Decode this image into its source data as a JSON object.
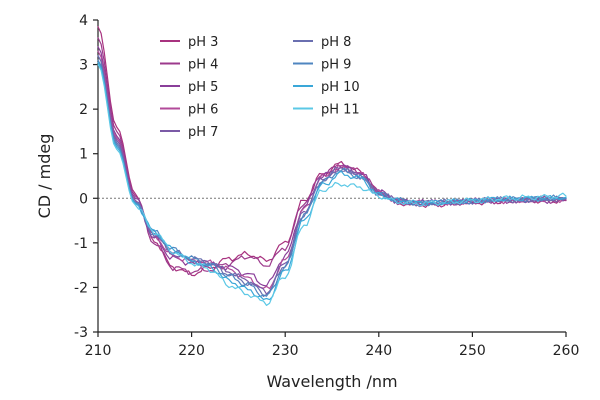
{
  "chart_data": {
    "type": "line",
    "title": "",
    "xlabel": "Wavelength /nm",
    "ylabel": "CD / mdeg",
    "xlim": [
      210,
      260
    ],
    "ylim": [
      -3,
      4
    ],
    "x_ticks": [
      210,
      220,
      230,
      240,
      250,
      260
    ],
    "y_ticks": [
      -3,
      -2,
      -1,
      0,
      1,
      2,
      3,
      4
    ],
    "x_tick_labels": [
      "210",
      "220",
      "230",
      "240",
      "250",
      "260"
    ],
    "y_tick_labels": [
      "-3",
      "-2",
      "-1",
      "0",
      "1",
      "2",
      "3",
      "4"
    ],
    "zero_reference_line": true,
    "legend_position": "top-left-inside",
    "x": [
      210,
      212,
      214,
      216,
      218,
      220,
      222,
      224,
      226,
      228,
      230,
      232,
      234,
      236,
      238,
      240,
      242,
      244,
      246,
      248,
      250,
      252,
      254,
      256,
      258,
      260
    ],
    "series": [
      {
        "name": "pH 3",
        "color": "#a8327f",
        "values": [
          3.85,
          1.6,
          0.1,
          -0.95,
          -1.55,
          -1.7,
          -1.55,
          -1.35,
          -1.25,
          -1.4,
          -1.0,
          -0.05,
          0.55,
          0.78,
          0.6,
          0.15,
          -0.1,
          -0.15,
          -0.15,
          -0.1,
          -0.1,
          -0.08,
          -0.05,
          -0.05,
          -0.05,
          -0.05
        ]
      },
      {
        "name": "pH 4",
        "color": "#9c3a8c",
        "values": [
          3.6,
          1.5,
          0.05,
          -1.0,
          -1.55,
          -1.65,
          -1.6,
          -1.45,
          -1.3,
          -1.5,
          -1.1,
          -0.1,
          0.55,
          0.75,
          0.58,
          0.15,
          -0.08,
          -0.12,
          -0.12,
          -0.1,
          -0.08,
          -0.06,
          -0.05,
          -0.05,
          -0.05,
          -0.05
        ]
      },
      {
        "name": "pH 5",
        "color": "#8a3f9a",
        "values": [
          3.4,
          1.4,
          0.0,
          -0.9,
          -1.35,
          -1.45,
          -1.5,
          -1.55,
          -1.7,
          -1.95,
          -1.3,
          -0.2,
          0.5,
          0.72,
          0.56,
          0.15,
          -0.05,
          -0.1,
          -0.1,
          -0.08,
          -0.08,
          -0.05,
          -0.05,
          -0.05,
          -0.05,
          0.0
        ]
      },
      {
        "name": "pH 6",
        "color": "#b24a9a",
        "values": [
          3.3,
          1.35,
          -0.05,
          -0.85,
          -1.3,
          -1.4,
          -1.45,
          -1.6,
          -1.8,
          -2.05,
          -1.4,
          -0.25,
          0.48,
          0.7,
          0.55,
          0.12,
          -0.05,
          -0.1,
          -0.1,
          -0.08,
          -0.06,
          -0.05,
          -0.05,
          -0.03,
          -0.03,
          -0.02
        ]
      },
      {
        "name": "pH 7",
        "color": "#7b5aa6",
        "values": [
          3.2,
          1.3,
          -0.05,
          -0.8,
          -1.25,
          -1.4,
          -1.45,
          -1.65,
          -1.85,
          -2.1,
          -1.45,
          -0.3,
          0.45,
          0.68,
          0.52,
          0.12,
          -0.05,
          -0.1,
          -0.1,
          -0.08,
          -0.06,
          -0.04,
          -0.03,
          -0.03,
          -0.02,
          -0.02
        ]
      },
      {
        "name": "pH 8",
        "color": "#6a6fb0",
        "values": [
          3.2,
          1.25,
          -0.1,
          -0.8,
          -1.2,
          -1.35,
          -1.45,
          -1.7,
          -1.9,
          -2.15,
          -1.5,
          -0.35,
          0.4,
          0.65,
          0.5,
          0.1,
          -0.05,
          -0.1,
          -0.1,
          -0.08,
          -0.06,
          -0.04,
          -0.03,
          -0.02,
          -0.02,
          -0.01
        ]
      },
      {
        "name": "pH 9",
        "color": "#4f86c0",
        "values": [
          3.1,
          1.2,
          -0.1,
          -0.75,
          -1.15,
          -1.35,
          -1.5,
          -1.75,
          -1.95,
          -2.2,
          -1.55,
          -0.4,
          0.38,
          0.62,
          0.48,
          0.1,
          -0.05,
          -0.1,
          -0.1,
          -0.08,
          -0.06,
          -0.04,
          -0.02,
          -0.01,
          0.0,
          0.0
        ]
      },
      {
        "name": "pH 10",
        "color": "#3aa7d8",
        "values": [
          3.05,
          1.15,
          -0.12,
          -0.75,
          -1.15,
          -1.4,
          -1.55,
          -1.85,
          -2.05,
          -2.3,
          -1.65,
          -0.5,
          0.3,
          0.55,
          0.45,
          0.08,
          -0.05,
          -0.1,
          -0.1,
          -0.08,
          -0.05,
          -0.03,
          -0.02,
          0.0,
          0.0,
          0.02
        ]
      },
      {
        "name": "pH 11",
        "color": "#5bc8e6",
        "values": [
          3.0,
          1.1,
          -0.15,
          -0.75,
          -1.2,
          -1.45,
          -1.6,
          -1.95,
          -2.15,
          -2.35,
          -1.75,
          -0.6,
          0.2,
          0.32,
          0.25,
          0.05,
          -0.08,
          -0.12,
          -0.1,
          -0.08,
          -0.05,
          -0.02,
          0.0,
          0.02,
          0.03,
          0.05
        ]
      }
    ]
  }
}
